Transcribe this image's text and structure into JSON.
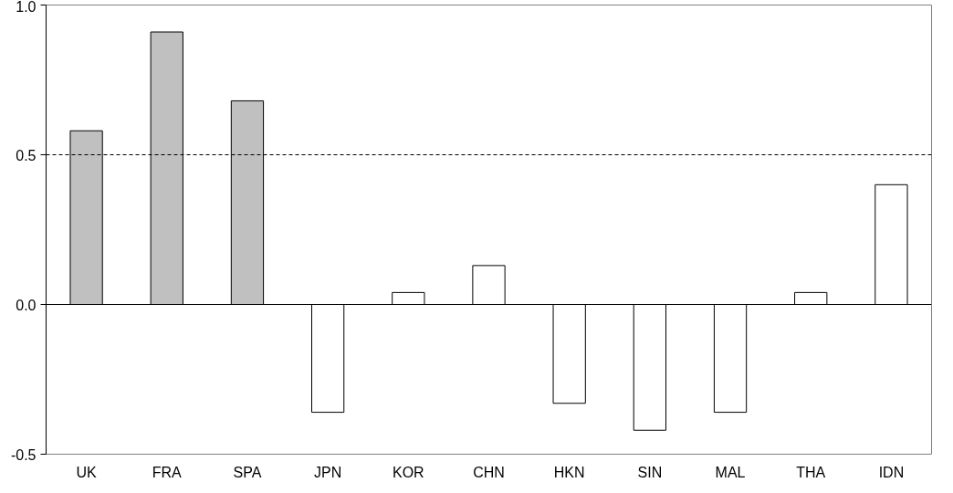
{
  "chart_data": {
    "type": "bar",
    "categories": [
      "UK",
      "FRA",
      "SPA",
      "JPN",
      "KOR",
      "CHN",
      "HKN",
      "SIN",
      "MAL",
      "THA",
      "IDN"
    ],
    "values": [
      0.58,
      0.91,
      0.68,
      -0.36,
      0.04,
      0.13,
      -0.33,
      -0.42,
      -0.36,
      0.04,
      0.4
    ],
    "colors": [
      "#c0c0c0",
      "#c0c0c0",
      "#c0c0c0",
      "#ffffff",
      "#ffffff",
      "#ffffff",
      "#ffffff",
      "#ffffff",
      "#ffffff",
      "#ffffff",
      "#ffffff"
    ],
    "ylim": [
      -0.5,
      1.0
    ],
    "yticks": [
      {
        "value": -0.5,
        "label": "-0.5"
      },
      {
        "value": 0,
        "label": "0.0"
      },
      {
        "value": 0.5,
        "label": "0.5"
      },
      {
        "value": 1.0,
        "label": "1.0"
      }
    ],
    "grid": false,
    "ref_lines": [
      {
        "axis": "y",
        "value": 0.5,
        "line_style": "dashed",
        "color": "#000000"
      },
      {
        "axis": "y",
        "value": 0,
        "line_style": "solid",
        "color": "#000000"
      }
    ]
  }
}
